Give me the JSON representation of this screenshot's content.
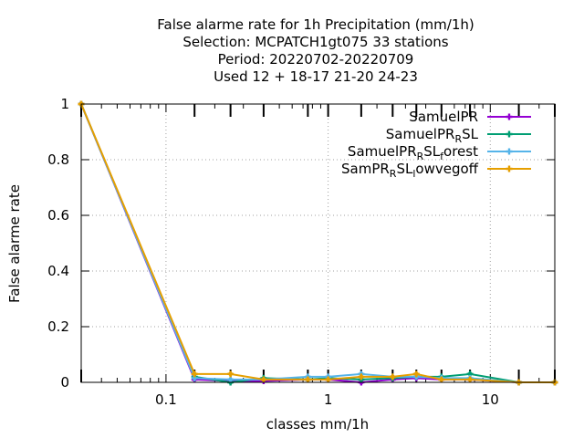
{
  "chart_data": {
    "type": "line",
    "title_lines": [
      "False alarme rate  for 1h Precipitation (mm/1h)",
      "Selection: MCPATCH1gt075     33 stations",
      "Period: 20220702-20220709",
      "Used  12 + 18-17 21-20 24-23"
    ],
    "xlabel": "classes mm/1h",
    "ylabel": "False alarme rate",
    "x_scale": "log",
    "xlim": [
      0.03,
      25
    ],
    "ylim": [
      0,
      1
    ],
    "x_tick_labels": [
      "0.1",
      "1",
      "10"
    ],
    "y_tick_labels": [
      "0",
      "0.2",
      "0.4",
      "0.6",
      "0.8",
      "1"
    ],
    "grid": true,
    "legend_position": "top-right",
    "x": [
      0.03,
      0.15,
      0.25,
      0.4,
      0.75,
      1.0,
      1.6,
      2.5,
      3.5,
      5.0,
      7.5,
      15,
      25
    ],
    "series": [
      {
        "name": "SamuelPR",
        "legend": {
          "main": "SamuelPR",
          "parts": []
        },
        "color": "#9400d3",
        "values": [
          1.0,
          0.01,
          0.005,
          0.005,
          0.01,
          0.01,
          0.0,
          0.01,
          0.015,
          0.01,
          0.01,
          0.0,
          0.0
        ]
      },
      {
        "name": "SamuelPR_RSL",
        "legend": {
          "main": "SamuelPR",
          "parts": [
            {
              "t": "R",
              "sub": true
            },
            {
              "t": "SL",
              "sub": false
            }
          ]
        },
        "color": "#009e73",
        "values": [
          1.0,
          0.02,
          0.0,
          0.015,
          0.01,
          0.015,
          0.01,
          0.015,
          0.02,
          0.02,
          0.03,
          0.0,
          0.0
        ]
      },
      {
        "name": "SamuelPR_RSL_forest",
        "legend": {
          "main": "SamuelPR",
          "parts": [
            {
              "t": "R",
              "sub": true
            },
            {
              "t": "SL",
              "sub": false
            },
            {
              "t": "f",
              "sub": true
            },
            {
              "t": "orest",
              "sub": false
            }
          ]
        },
        "color": "#56b4e9",
        "values": [
          1.0,
          0.015,
          0.01,
          0.01,
          0.02,
          0.02,
          0.03,
          0.02,
          0.02,
          0.015,
          0.015,
          0.0,
          0.0
        ]
      },
      {
        "name": "SamPR_RSL_lowvegoff",
        "legend": {
          "main": "SamPR",
          "parts": [
            {
              "t": "R",
              "sub": true
            },
            {
              "t": "SL",
              "sub": false
            },
            {
              "t": "l",
              "sub": true
            },
            {
              "t": "owvegoff",
              "sub": false
            }
          ]
        },
        "color": "#e69f00",
        "values": [
          1.0,
          0.03,
          0.03,
          0.01,
          0.01,
          0.01,
          0.02,
          0.02,
          0.03,
          0.01,
          0.01,
          0.0,
          0.0
        ]
      }
    ]
  }
}
